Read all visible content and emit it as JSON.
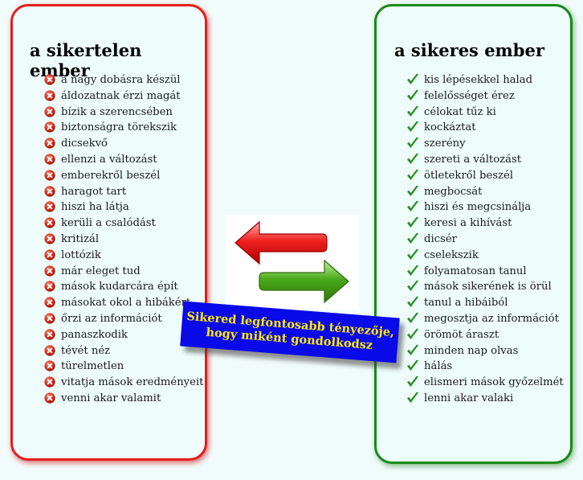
{
  "left_panel": {
    "title": "a sikertelen ember",
    "icon": "red-x-icon",
    "color": "#e41e1e",
    "items": [
      "a nagy dobásra készül",
      "áldozatnak érzi magát",
      "bízik a szerencsében",
      "biztonságra törekszik",
      "dicsekvő",
      "ellenzi a változást",
      "emberekről beszél",
      "haragot tart",
      "hiszi ha látja",
      "kerüli a csalódást",
      "kritizál",
      "lottózik",
      "már eleget tud",
      "mások kudarcára épít",
      "másokat okol a hibákért",
      "őrzi az információt",
      "panaszkodik",
      "tévét néz",
      "türelmetlen",
      "vitatja mások eredményeit",
      "venni akar valamit"
    ]
  },
  "right_panel": {
    "title": "a sikeres ember",
    "icon": "green-check-icon",
    "color": "#178a17",
    "items": [
      "kis lépésekkel halad",
      "felelősséget érez",
      "célokat tűz ki",
      "kockáztat",
      "szerény",
      "szereti a változást",
      "ötletekről beszél",
      "megbocsát",
      "hiszi és megcsinálja",
      "keresi a kihívást",
      "dicsér",
      "cselekszik",
      "folyamatosan tanul",
      "mások sikerének is örül",
      "tanul a hibáiból",
      "megosztja az információt",
      "örömöt áraszt",
      "minden nap olvas",
      "hálás",
      "elismeri mások győzelmét",
      "lenni akar valaki"
    ]
  },
  "center": {
    "arrows_icon": "exchange-arrows-icon",
    "banner_line1": "Sikered legfontosabb tényezője,",
    "banner_line2": "hogy miként gondolkodsz",
    "banner_bg": "#0a0ae8",
    "banner_text_color": "#ffe900"
  }
}
